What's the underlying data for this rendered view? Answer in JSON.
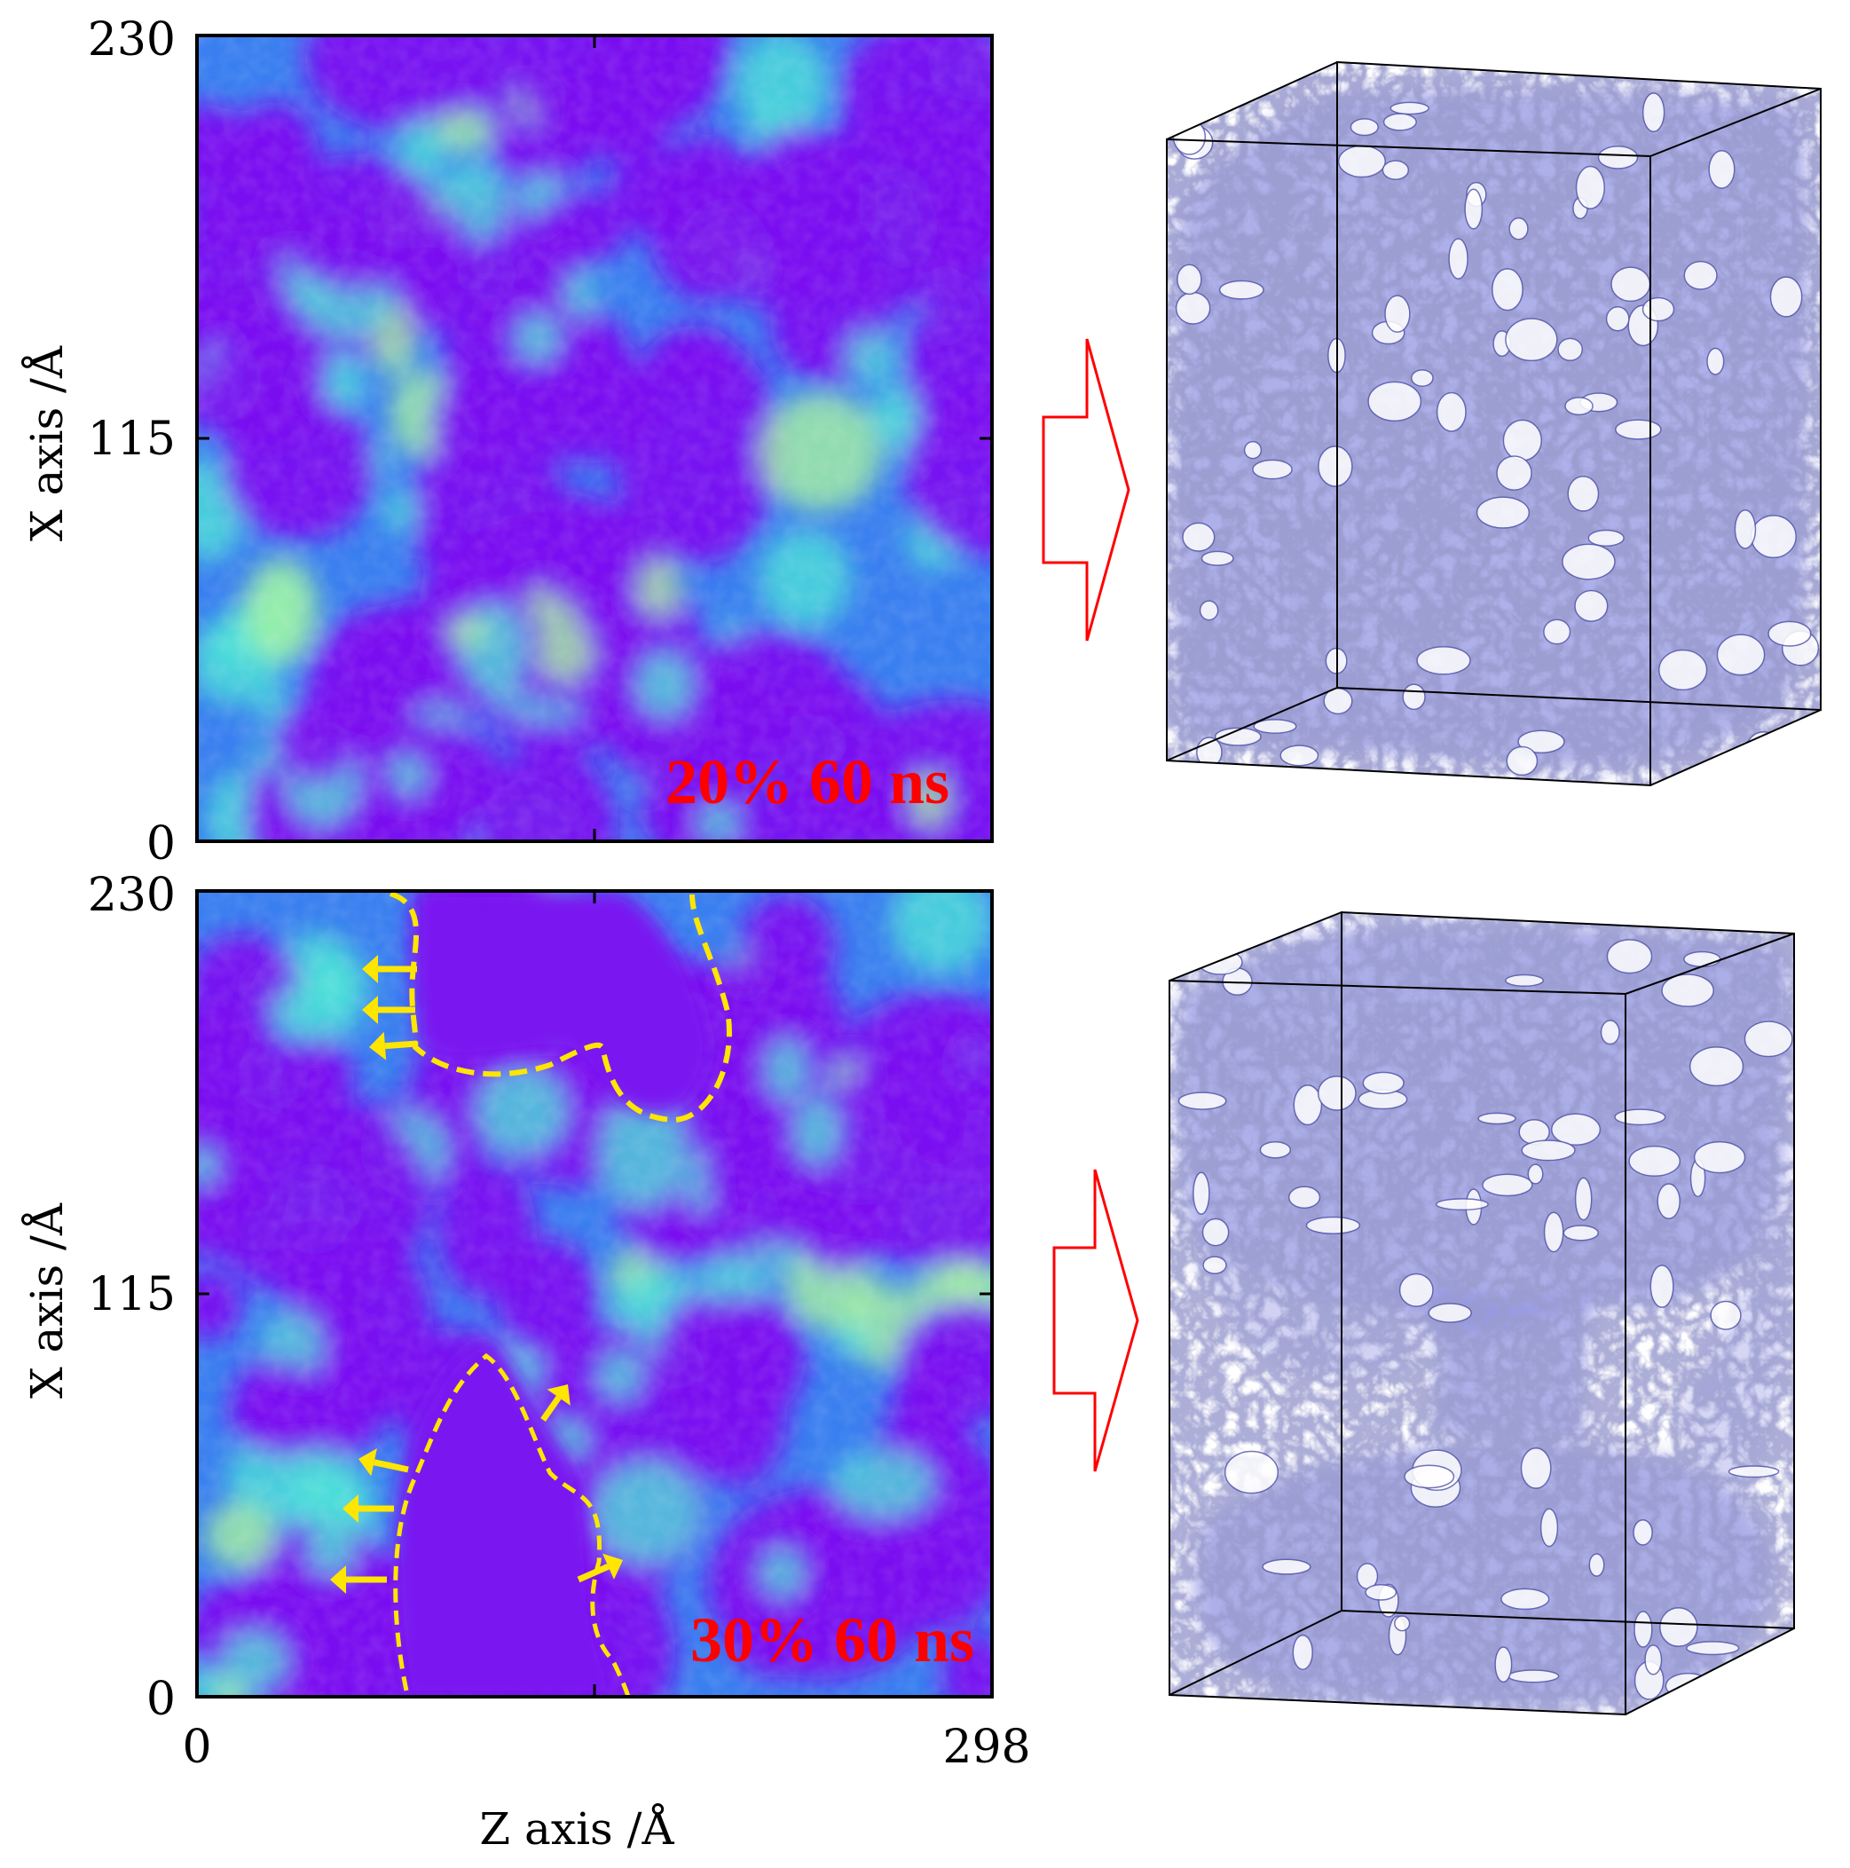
{
  "chart_data": [
    {
      "type": "heatmap",
      "annotation": "20% 60 ns",
      "xlabel": "",
      "ylabel": "X axis /Å",
      "xlim": [
        0,
        298
      ],
      "ylim": [
        0,
        230
      ],
      "yticks": [
        "0",
        "115",
        "230"
      ],
      "colors": {
        "low": "#7a12f0",
        "mid": "#3a7ff0",
        "high": "#4ee0d8",
        "peak": "#a6f3a0"
      }
    },
    {
      "type": "heatmap",
      "annotation": "30% 60 ns",
      "xlabel": "Z axis /Å",
      "ylabel": "X axis /Å",
      "xlim": [
        0,
        298
      ],
      "ylim": [
        0,
        230
      ],
      "xticks": [
        "0",
        "298"
      ],
      "yticks": [
        "0",
        "115",
        "230"
      ],
      "boundary_color": "#ffe600",
      "colors": {
        "low": "#7a12f0",
        "mid": "#3a7ff0",
        "high": "#4ee0d8",
        "peak": "#a6f3a0"
      }
    }
  ],
  "render_colors": {
    "isosurface": "#8d8fe0",
    "arrow": "#ff0000",
    "frame": "#000000"
  }
}
